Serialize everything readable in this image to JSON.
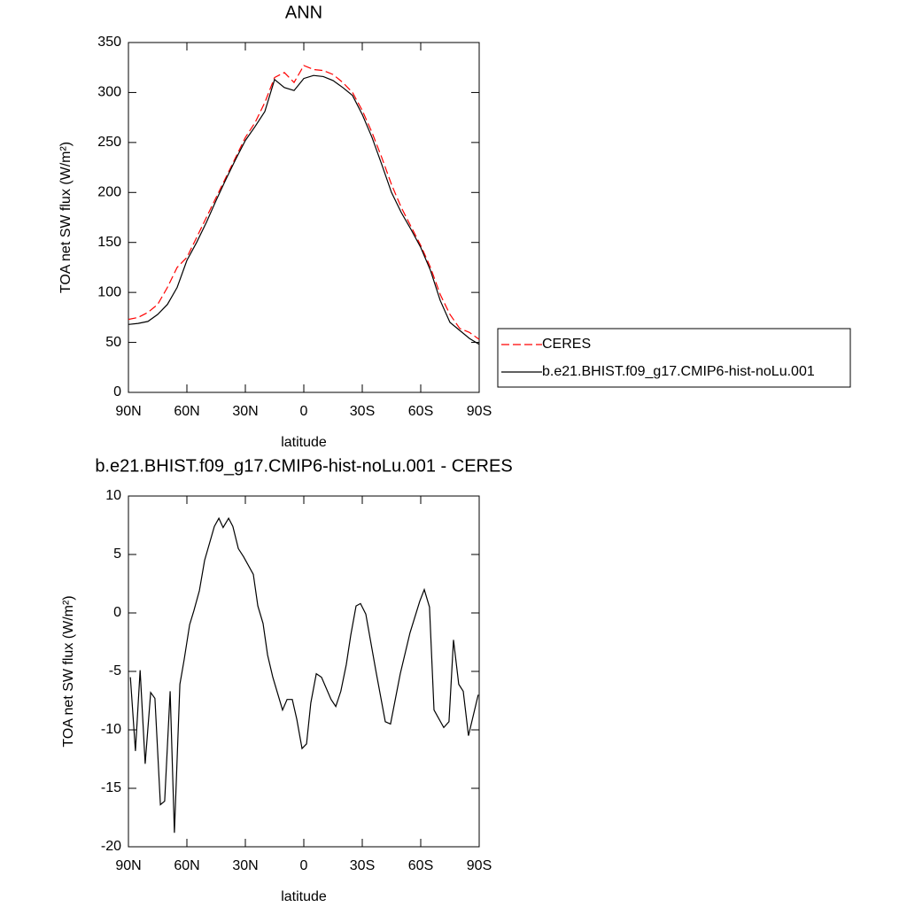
{
  "chart_data": [
    {
      "type": "line",
      "title": "ANN",
      "xlabel": "latitude",
      "ylabel": "TOA net SW flux (W/m²)",
      "x": [
        90,
        85,
        80,
        75,
        70,
        65,
        60,
        55,
        50,
        45,
        40,
        35,
        30,
        25,
        20,
        15,
        10,
        5,
        0,
        -5,
        -10,
        -15,
        -20,
        -25,
        -30,
        -35,
        -40,
        -45,
        -50,
        -55,
        -60,
        -65,
        -70,
        -75,
        -80,
        -85,
        -90
      ],
      "series": [
        {
          "name": "CERES",
          "color": "#ff0000",
          "linestyle": "dashed",
          "values": [
            73,
            75,
            80,
            88,
            105,
            125,
            135,
            155,
            175,
            195,
            215,
            235,
            255,
            270,
            290,
            315,
            320,
            310,
            327,
            323,
            322,
            318,
            310,
            300,
            282,
            260,
            235,
            208,
            185,
            166,
            147,
            125,
            98,
            78,
            64,
            60,
            53
          ]
        },
        {
          "name": "b.e21.BHIST.f09_g17.CMIP6-hist-noLu.001",
          "color": "#000000",
          "linestyle": "solid",
          "values": [
            68,
            69,
            71,
            78,
            88,
            105,
            132,
            150,
            170,
            192,
            213,
            233,
            252,
            266,
            281,
            313,
            305,
            302,
            314,
            317,
            316,
            312,
            305,
            297,
            278,
            255,
            228,
            200,
            180,
            163,
            145,
            122,
            92,
            70,
            62,
            54,
            48
          ]
        }
      ],
      "xlim": [
        90,
        -90
      ],
      "xticks": [
        {
          "value": 90,
          "label": "90N"
        },
        {
          "value": 60,
          "label": "60N"
        },
        {
          "value": 30,
          "label": "30N"
        },
        0,
        {
          "value": -30,
          "label": "30S"
        },
        {
          "value": -60,
          "label": "60S"
        },
        {
          "value": -90,
          "label": "90S"
        }
      ],
      "ylim": [
        0,
        350
      ],
      "yticks": [
        0,
        50,
        100,
        150,
        200,
        250,
        300,
        350
      ],
      "legend": "right"
    },
    {
      "type": "line",
      "title": "b.e21.BHIST.f09_g17.CMIP6-hist-noLu.001 - CERES",
      "xlabel": "latitude",
      "ylabel": "TOA net SW flux (W/m²)",
      "x": [
        89,
        86.4,
        84,
        81.4,
        78.6,
        76.4,
        73.6,
        71.4,
        68.6,
        66.4,
        63.6,
        61.4,
        58.6,
        56.4,
        53.6,
        50.9,
        45.9,
        43.6,
        41.4,
        38.6,
        36.4,
        33.6,
        30.9,
        25.9,
        23.6,
        20.9,
        18.6,
        15.9,
        10.9,
        8.6,
        5.9,
        3.6,
        0.9,
        -1.4,
        -3.6,
        -6.4,
        -9.1,
        -14,
        -16.4,
        -19,
        -21.8,
        -24.1,
        -26.8,
        -29.1,
        -31.8,
        -36.8,
        -41.8,
        -44.5,
        -49.5,
        -54.5,
        -59.5,
        -61.8,
        -64.5,
        -66.8,
        -71.8,
        -74.5,
        -76.8,
        -79.5,
        -81.8,
        -84.5,
        -89.5
      ],
      "color": "#000000",
      "values": [
        -5.5,
        -11.8,
        -4.9,
        -12.9,
        -6.8,
        -7.3,
        -16.4,
        -16.1,
        -6.7,
        -18.8,
        -6.1,
        -4.0,
        -1.0,
        0.2,
        1.9,
        4.5,
        7.4,
        8.1,
        7.3,
        8.1,
        7.4,
        5.5,
        4.8,
        3.3,
        0.6,
        -0.9,
        -3.6,
        -5.5,
        -8.3,
        -7.4,
        -7.4,
        -9.1,
        -11.6,
        -11.2,
        -7.7,
        -5.2,
        -5.5,
        -7.4,
        -8.0,
        -6.7,
        -4.4,
        -1.9,
        0.6,
        0.8,
        -0.1,
        -4.8,
        -9.3,
        -9.5,
        -5.2,
        -1.7,
        1.0,
        2.0,
        0.5,
        -8.3,
        -9.8,
        -9.3,
        -2.3,
        -6.1,
        -6.7,
        -10.5,
        -7.0
      ],
      "xlim": [
        90,
        -90
      ],
      "xticks": [
        {
          "value": 90,
          "label": "90N"
        },
        {
          "value": 60,
          "label": "60N"
        },
        {
          "value": 30,
          "label": "30N"
        },
        0,
        {
          "value": -30,
          "label": "30S"
        },
        {
          "value": -60,
          "label": "60S"
        },
        {
          "value": -90,
          "label": "90S"
        }
      ],
      "ylim": [
        -20,
        10
      ],
      "yticks": [
        -20,
        -15,
        -10,
        -5,
        0,
        5,
        10
      ]
    }
  ]
}
